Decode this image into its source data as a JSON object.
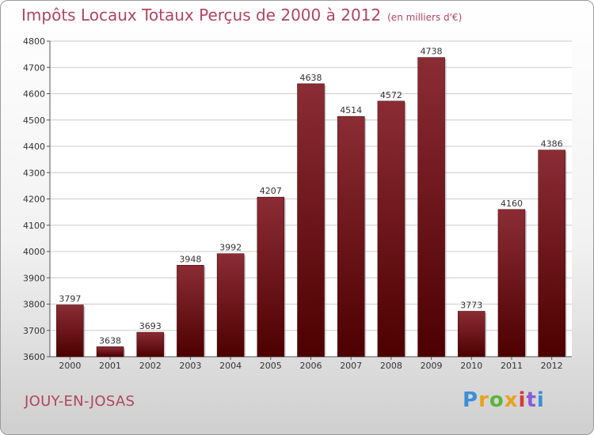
{
  "chart_data": {
    "type": "bar",
    "title": "Impôts Locaux Totaux Perçus de 2000 à 2012",
    "unit_note": "(en milliers d'€)",
    "categories": [
      "2000",
      "2001",
      "2002",
      "2003",
      "2004",
      "2005",
      "2006",
      "2007",
      "2008",
      "2009",
      "2010",
      "2011",
      "2012"
    ],
    "values": [
      3797,
      3638,
      3693,
      3948,
      3992,
      4207,
      4638,
      4514,
      4572,
      4738,
      3773,
      4160,
      4386
    ],
    "ylim": [
      3600,
      4800
    ],
    "yticks": [
      3600,
      3700,
      3800,
      3900,
      4000,
      4100,
      4200,
      4300,
      4400,
      4500,
      4600,
      4700,
      4800
    ],
    "grid": true,
    "bar_color_top": "#8b2c35",
    "bar_color_bottom": "#4d0000"
  },
  "footer": {
    "city": "JOUY-EN-JOSAS",
    "logo_letters": [
      "P",
      "r",
      "o",
      "x",
      "i",
      "t",
      "i"
    ],
    "logo_colors": [
      "#3a8fd6",
      "#e9a21c",
      "#5fb33c",
      "#e9a21c",
      "#d43a3a",
      "#8a5bd6",
      "#3a8fd6"
    ]
  },
  "colors": {
    "title": "#b0455f",
    "plot_bg": "#ffffff",
    "grid": "#cccccc"
  }
}
